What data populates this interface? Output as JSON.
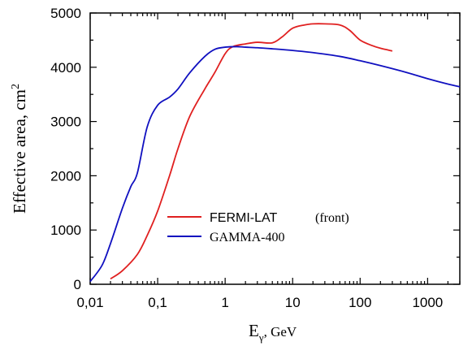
{
  "chart_data": {
    "type": "line",
    "xscale": "log",
    "xlim": [
      0.01,
      3000
    ],
    "ylim": [
      0,
      5000
    ],
    "xticks": [
      0.01,
      0.1,
      1,
      10,
      100,
      1000
    ],
    "xtick_labels": [
      "0,01",
      "0,1",
      "1",
      "10",
      "100",
      "1000"
    ],
    "yticks": [
      0,
      1000,
      2000,
      3000,
      4000,
      5000
    ],
    "ytick_labels": [
      "0",
      "1000",
      "2000",
      "3000",
      "4000",
      "5000"
    ],
    "ylabel_main": "Effective area, cm",
    "ylabel_sup": "2",
    "xlabel_main": "E",
    "xlabel_sub": "γ",
    "xlabel_unit": ", GeV",
    "legend_placement": "lower-center",
    "series": [
      {
        "name": "FERMI-LAT",
        "name_note": "(front)",
        "color": "#e02020",
        "x": [
          0.02,
          0.03,
          0.05,
          0.07,
          0.1,
          0.15,
          0.2,
          0.3,
          0.5,
          0.7,
          1,
          1.3,
          2,
          3,
          5,
          7,
          10,
          15,
          20,
          30,
          50,
          70,
          100,
          150,
          200,
          300
        ],
        "y": [
          100,
          250,
          550,
          900,
          1350,
          2000,
          2500,
          3100,
          3600,
          3900,
          4250,
          4380,
          4430,
          4460,
          4450,
          4560,
          4720,
          4780,
          4800,
          4800,
          4780,
          4680,
          4500,
          4400,
          4350,
          4300
        ]
      },
      {
        "name": "GAMMA-400",
        "color": "#1010c0",
        "x": [
          0.01,
          0.015,
          0.02,
          0.03,
          0.04,
          0.05,
          0.07,
          0.1,
          0.15,
          0.2,
          0.3,
          0.5,
          0.7,
          1,
          1.5,
          2,
          3,
          5,
          10,
          20,
          50,
          100,
          200,
          500,
          1000,
          2000,
          3000
        ],
        "y": [
          50,
          350,
          750,
          1400,
          1800,
          2050,
          2900,
          3300,
          3450,
          3600,
          3900,
          4200,
          4330,
          4370,
          4380,
          4370,
          4360,
          4340,
          4310,
          4270,
          4200,
          4120,
          4030,
          3900,
          3790,
          3690,
          3640
        ]
      }
    ]
  }
}
